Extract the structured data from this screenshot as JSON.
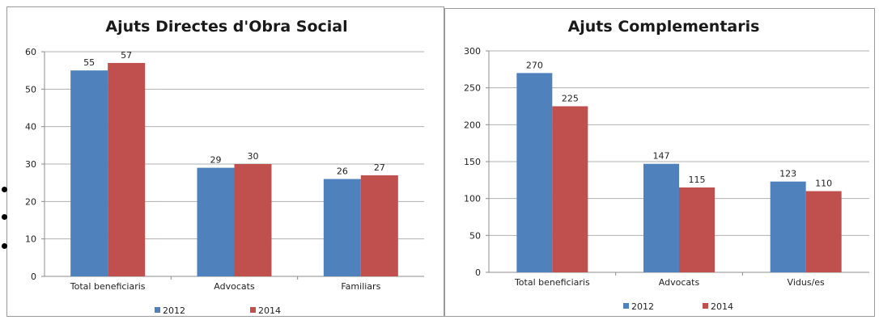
{
  "charts": [
    {
      "type": "bar",
      "title": "Ajuts Directes d'Obra Social",
      "categories": [
        "Total beneficiaris",
        "Advocats",
        "Familiars"
      ],
      "series": [
        {
          "name": "2012",
          "values": [
            55,
            29,
            26
          ],
          "color": "#4f81bd"
        },
        {
          "name": "2014",
          "values": [
            57,
            30,
            27
          ],
          "color": "#c0504d"
        }
      ],
      "ylim": [
        0,
        60
      ],
      "yticks": [
        0,
        10,
        20,
        30,
        40,
        50,
        60
      ],
      "ytick_labels": [
        "0",
        "10",
        "20",
        "30",
        "40",
        "50",
        "60"
      ],
      "grid": true,
      "legend": "bottom"
    },
    {
      "type": "bar",
      "title": "Ajuts Complementaris",
      "categories": [
        "Total beneficiaris",
        "Advocats",
        "Vidus/es"
      ],
      "series": [
        {
          "name": "2012",
          "values": [
            270,
            147,
            123
          ],
          "color": "#4f81bd"
        },
        {
          "name": "2014",
          "values": [
            225,
            115,
            110
          ],
          "color": "#c0504d"
        }
      ],
      "ylim": [
        0,
        300
      ],
      "yticks": [
        0,
        50,
        100,
        150,
        200,
        250,
        300
      ],
      "ytick_labels": [
        "0",
        "50",
        "100",
        "150",
        "200",
        "250",
        "300"
      ],
      "grid": true,
      "legend": "bottom"
    }
  ],
  "gridline_color": "#b0b0b0",
  "axis_color": "#8c8c8c"
}
